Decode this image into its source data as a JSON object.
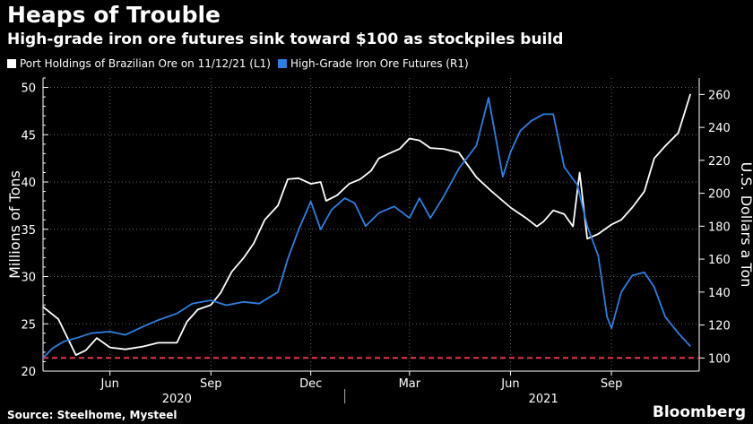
{
  "header": {
    "title": "Heaps of Trouble",
    "subtitle": "High-grade iron ore futures sink toward $100 as stockpiles build"
  },
  "footer": {
    "source": "Source: Steelhome, Mysteel",
    "brand": "Bloomberg"
  },
  "colors": {
    "background": "#000000",
    "port_holdings": "#ffffff",
    "futures": "#2f7fe0",
    "reference_line": "#e8354a",
    "grid": "#666666"
  },
  "chart_data": {
    "type": "line",
    "legend_placement": "top-left",
    "grid": true,
    "x_range": [
      "2020-04-01",
      "2021-11-20"
    ],
    "x_ticks": [
      {
        "label": "Jun",
        "date": "2020-06-01"
      },
      {
        "label": "Sep",
        "date": "2020-09-01"
      },
      {
        "label": "Dec",
        "date": "2020-12-01"
      },
      {
        "label": "Mar",
        "date": "2021-03-01"
      },
      {
        "label": "Jun",
        "date": "2021-06-01"
      },
      {
        "label": "Sep",
        "date": "2021-09-01"
      }
    ],
    "year_labels": [
      {
        "label": "2020",
        "date": "2020-08-01"
      },
      {
        "label": "2021",
        "date": "2021-07-01"
      }
    ],
    "year_divider_date": "2021-01-01",
    "left_axis": {
      "label": "Millions of Tons",
      "range": [
        20,
        51
      ],
      "ticks": [
        20,
        25,
        30,
        35,
        40,
        45,
        50
      ]
    },
    "right_axis": {
      "label": "U.S. Dollars a Ton",
      "range": [
        92,
        270
      ],
      "ticks": [
        100,
        120,
        140,
        160,
        180,
        200,
        220,
        240,
        260
      ]
    },
    "reference_line": {
      "axis": "right",
      "value": 100
    },
    "series": [
      {
        "name": "Port Holdings of Brazilian Ore on 11/12/21 (L1)",
        "axis": "left",
        "points": [
          [
            "2020-04-01",
            26.8
          ],
          [
            "2020-04-15",
            25.5
          ],
          [
            "2020-05-01",
            21.7
          ],
          [
            "2020-05-10",
            22.2
          ],
          [
            "2020-05-20",
            23.5
          ],
          [
            "2020-06-01",
            22.5
          ],
          [
            "2020-06-15",
            22.3
          ],
          [
            "2020-07-01",
            22.6
          ],
          [
            "2020-07-15",
            23.0
          ],
          [
            "2020-08-01",
            23.0
          ],
          [
            "2020-08-10",
            25.2
          ],
          [
            "2020-08-20",
            26.5
          ],
          [
            "2020-09-01",
            27.0
          ],
          [
            "2020-09-10",
            28.3
          ],
          [
            "2020-09-20",
            30.5
          ],
          [
            "2020-10-01",
            32.0
          ],
          [
            "2020-10-10",
            33.5
          ],
          [
            "2020-10-20",
            36.0
          ],
          [
            "2020-11-01",
            37.5
          ],
          [
            "2020-11-10",
            40.3
          ],
          [
            "2020-11-20",
            40.4
          ],
          [
            "2020-12-01",
            39.8
          ],
          [
            "2020-12-10",
            40.0
          ],
          [
            "2020-12-15",
            38.0
          ],
          [
            "2020-12-25",
            38.6
          ],
          [
            "2021-01-05",
            39.8
          ],
          [
            "2021-01-15",
            40.3
          ],
          [
            "2021-01-25",
            41.2
          ],
          [
            "2021-02-01",
            42.5
          ],
          [
            "2021-02-10",
            43.0
          ],
          [
            "2021-02-20",
            43.5
          ],
          [
            "2021-03-01",
            44.6
          ],
          [
            "2021-03-10",
            44.4
          ],
          [
            "2021-03-20",
            43.6
          ],
          [
            "2021-04-01",
            43.5
          ],
          [
            "2021-04-15",
            43.1
          ],
          [
            "2021-05-01",
            40.5
          ],
          [
            "2021-05-15",
            39.0
          ],
          [
            "2021-06-01",
            37.3
          ],
          [
            "2021-06-15",
            36.2
          ],
          [
            "2021-06-25",
            35.3
          ],
          [
            "2021-07-01",
            35.8
          ],
          [
            "2021-07-10",
            37.0
          ],
          [
            "2021-07-20",
            36.6
          ],
          [
            "2021-07-28",
            35.3
          ],
          [
            "2021-08-03",
            41.0
          ],
          [
            "2021-08-10",
            34.0
          ],
          [
            "2021-08-20",
            34.5
          ],
          [
            "2021-09-01",
            35.5
          ],
          [
            "2021-09-10",
            36.0
          ],
          [
            "2021-09-20",
            37.3
          ],
          [
            "2021-10-01",
            39.0
          ],
          [
            "2021-10-10",
            42.5
          ],
          [
            "2021-10-20",
            43.8
          ],
          [
            "2021-11-01",
            45.2
          ],
          [
            "2021-11-12",
            49.3
          ]
        ]
      },
      {
        "name": "High-Grade Iron Ore Futures (R1)",
        "axis": "right",
        "points": [
          [
            "2020-04-01",
            100
          ],
          [
            "2020-04-10",
            106
          ],
          [
            "2020-04-20",
            110
          ],
          [
            "2020-05-01",
            112
          ],
          [
            "2020-05-15",
            115
          ],
          [
            "2020-06-01",
            116
          ],
          [
            "2020-06-15",
            114
          ],
          [
            "2020-07-01",
            119
          ],
          [
            "2020-07-15",
            123
          ],
          [
            "2020-08-01",
            127
          ],
          [
            "2020-08-15",
            133
          ],
          [
            "2020-09-01",
            135
          ],
          [
            "2020-09-15",
            132
          ],
          [
            "2020-10-01",
            134
          ],
          [
            "2020-10-15",
            133
          ],
          [
            "2020-11-01",
            140
          ],
          [
            "2020-11-10",
            160
          ],
          [
            "2020-11-20",
            178
          ],
          [
            "2020-12-01",
            195
          ],
          [
            "2020-12-10",
            178
          ],
          [
            "2020-12-20",
            190
          ],
          [
            "2021-01-01",
            197
          ],
          [
            "2021-01-10",
            194
          ],
          [
            "2021-01-20",
            180
          ],
          [
            "2021-02-01",
            188
          ],
          [
            "2021-02-15",
            192
          ],
          [
            "2021-03-01",
            185
          ],
          [
            "2021-03-10",
            197
          ],
          [
            "2021-03-20",
            185
          ],
          [
            "2021-04-01",
            198
          ],
          [
            "2021-04-15",
            215
          ],
          [
            "2021-05-01",
            229
          ],
          [
            "2021-05-12",
            258
          ],
          [
            "2021-05-25",
            210
          ],
          [
            "2021-06-01",
            225
          ],
          [
            "2021-06-10",
            238
          ],
          [
            "2021-06-20",
            244
          ],
          [
            "2021-07-01",
            248
          ],
          [
            "2021-07-10",
            248
          ],
          [
            "2021-07-20",
            216
          ],
          [
            "2021-08-01",
            205
          ],
          [
            "2021-08-10",
            180
          ],
          [
            "2021-08-20",
            162
          ],
          [
            "2021-08-28",
            125
          ],
          [
            "2021-09-01",
            118
          ],
          [
            "2021-09-10",
            140
          ],
          [
            "2021-09-20",
            150
          ],
          [
            "2021-10-01",
            152
          ],
          [
            "2021-10-10",
            143
          ],
          [
            "2021-10-20",
            125
          ],
          [
            "2021-11-01",
            115
          ],
          [
            "2021-11-12",
            107
          ]
        ]
      }
    ]
  }
}
